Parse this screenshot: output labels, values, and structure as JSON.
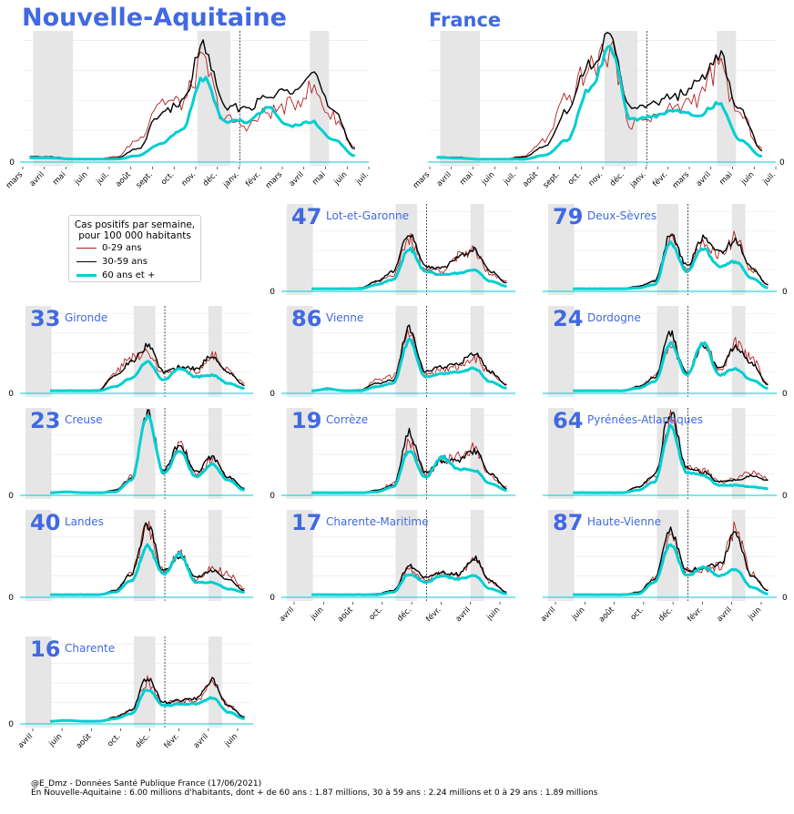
{
  "footer": {
    "line1": "@E_Dmz - Données Santé Publique France (17/06/2021)",
    "line2": "En Nouvelle-Aquitaine : 6.00 millions d'habitants, dont + de 60 ans : 1.87 millions, 30 à 59 ans : 2.24 millions et 0 à 29 ans : 1.89 millions"
  },
  "legend": {
    "title_line1": "Cas positifs par semaine,",
    "title_line2": "pour 100 000 habitants",
    "entries": [
      "0-29 ans",
      "30-59 ans",
      "60 ans et +"
    ]
  },
  "colors": {
    "young": "#b22222",
    "middle": "#000000",
    "senior": "#00ced1",
    "accent": "#4169e1",
    "shade": "#e6e6e6"
  },
  "chart_data": [
    {
      "type": "line",
      "title": "Nouvelle-Aquitaine",
      "x_tick_labels": [
        "mars",
        "avril",
        "mai",
        "juin",
        "juil.",
        "août",
        "sept.",
        "oct.",
        "nov.",
        "déc.",
        "janv.",
        "févr.",
        "mars",
        "avril",
        "mai",
        "juin",
        "juil."
      ],
      "y_tick_labels": [
        "0"
      ],
      "shaded_periods": [
        [
          "2020-03-17",
          "2020-05-11"
        ],
        [
          "2020-10-30",
          "2020-12-15"
        ],
        [
          "2021-04-03",
          "2021-05-03"
        ]
      ],
      "vertical_marker": "2021-01-01",
      "series": [
        {
          "name": "0-29 ans",
          "x": [
            "2020-03",
            "2020-04",
            "2020-05",
            "2020-06",
            "2020-07",
            "2020-08",
            "2020-09",
            "2020-10",
            "2020-11",
            "2020-12",
            "2021-01",
            "2021-02",
            "2021-03",
            "2021-04",
            "2021-05",
            "2021-06"
          ],
          "values": [
            2,
            2,
            1,
            1,
            3,
            18,
            52,
            50,
            84,
            36,
            30,
            42,
            48,
            62,
            38,
            12
          ]
        },
        {
          "name": "30-59 ans",
          "x": [
            "2020-03",
            "2020-04",
            "2020-05",
            "2020-06",
            "2020-07",
            "2020-08",
            "2020-09",
            "2020-10",
            "2020-11",
            "2020-12",
            "2021-01",
            "2021-02",
            "2021-03",
            "2021-04",
            "2021-05",
            "2021-06"
          ],
          "values": [
            3,
            3,
            1,
            1,
            2,
            10,
            40,
            50,
            100,
            46,
            46,
            55,
            62,
            78,
            42,
            10
          ]
        },
        {
          "name": "60 ans et +",
          "x": [
            "2020-03",
            "2020-04",
            "2020-05",
            "2020-06",
            "2020-07",
            "2020-08",
            "2020-09",
            "2020-10",
            "2020-11",
            "2020-12",
            "2021-01",
            "2021-02",
            "2021-03",
            "2021-04",
            "2021-05",
            "2021-06"
          ],
          "values": [
            2,
            2,
            1,
            1,
            1,
            4,
            14,
            26,
            72,
            34,
            34,
            46,
            30,
            34,
            18,
            4
          ]
        }
      ]
    },
    {
      "type": "line",
      "title": "France",
      "x_tick_labels": [
        "mars",
        "avril",
        "mai",
        "juin",
        "juil.",
        "août",
        "sept.",
        "oct.",
        "nov.",
        "déc.",
        "janv.",
        "févr.",
        "mars",
        "avril",
        "mai",
        "juin",
        "juil."
      ],
      "y_tick_labels": [],
      "shaded_periods": [
        [
          "2020-03-17",
          "2020-05-11"
        ],
        [
          "2020-10-30",
          "2020-12-15"
        ],
        [
          "2021-04-03",
          "2021-05-03"
        ]
      ],
      "vertical_marker": "2021-01-01",
      "series": [
        {
          "name": "0-29 ans",
          "x": [
            "2020-03",
            "2020-04",
            "2020-05",
            "2020-06",
            "2020-07",
            "2020-08",
            "2020-09",
            "2020-10",
            "2020-11",
            "2020-12",
            "2021-01",
            "2021-02",
            "2021-03",
            "2021-04",
            "2021-05",
            "2021-06"
          ],
          "values": [
            2,
            2,
            1,
            1,
            4,
            20,
            60,
            90,
            110,
            36,
            44,
            52,
            62,
            92,
            44,
            12
          ]
        },
        {
          "name": "30-59 ans",
          "x": [
            "2020-03",
            "2020-04",
            "2020-05",
            "2020-06",
            "2020-07",
            "2020-08",
            "2020-09",
            "2020-10",
            "2020-11",
            "2020-12",
            "2021-01",
            "2021-02",
            "2021-03",
            "2021-04",
            "2021-05",
            "2021-06"
          ],
          "values": [
            3,
            3,
            1,
            1,
            3,
            14,
            50,
            95,
            120,
            50,
            56,
            64,
            76,
            105,
            50,
            10
          ]
        },
        {
          "name": "60 ans et +",
          "x": [
            "2020-03",
            "2020-04",
            "2020-05",
            "2020-06",
            "2020-07",
            "2020-08",
            "2020-09",
            "2020-10",
            "2020-11",
            "2020-12",
            "2021-01",
            "2021-02",
            "2021-03",
            "2021-04",
            "2021-05",
            "2021-06"
          ],
          "values": [
            3,
            2,
            1,
            1,
            1,
            5,
            20,
            70,
            110,
            40,
            44,
            50,
            44,
            56,
            20,
            4
          ]
        }
      ]
    },
    {
      "type": "line",
      "code": "47",
      "name": "Lot-et-Garonne",
      "values_young": [
        1,
        1,
        1,
        2,
        10,
        18,
        60,
        24,
        24,
        40,
        48,
        20,
        10
      ],
      "values_middle": [
        1,
        1,
        1,
        2,
        10,
        22,
        70,
        28,
        26,
        40,
        48,
        22,
        8
      ],
      "values_senior": [
        1,
        1,
        1,
        1,
        6,
        12,
        50,
        22,
        18,
        20,
        24,
        10,
        4
      ]
    },
    {
      "type": "line",
      "code": "79",
      "name": "Deux-Sèvres",
      "values_young": [
        1,
        1,
        1,
        1,
        4,
        10,
        60,
        26,
        56,
        42,
        62,
        24,
        6
      ],
      "values_middle": [
        1,
        1,
        1,
        1,
        4,
        10,
        66,
        30,
        62,
        46,
        60,
        26,
        6
      ],
      "values_senior": [
        1,
        1,
        1,
        1,
        2,
        6,
        56,
        22,
        50,
        28,
        34,
        14,
        2
      ]
    },
    {
      "type": "line",
      "code": "33",
      "name": "Gironde",
      "values_young": [
        1,
        1,
        1,
        2,
        24,
        42,
        50,
        22,
        30,
        24,
        44,
        26,
        10
      ],
      "values_middle": [
        1,
        1,
        1,
        2,
        20,
        36,
        56,
        24,
        30,
        28,
        44,
        22,
        8
      ],
      "values_senior": [
        1,
        1,
        1,
        1,
        6,
        16,
        36,
        14,
        28,
        18,
        20,
        10,
        4
      ]
    },
    {
      "type": "line",
      "code": "86",
      "name": "Vienne",
      "values_young": [
        1,
        4,
        1,
        2,
        14,
        18,
        70,
        20,
        28,
        30,
        40,
        22,
        8
      ],
      "values_middle": [
        1,
        4,
        1,
        2,
        10,
        14,
        78,
        24,
        30,
        34,
        48,
        24,
        8
      ],
      "values_senior": [
        1,
        3,
        1,
        1,
        6,
        10,
        62,
        18,
        22,
        24,
        28,
        12,
        4
      ]
    },
    {
      "type": "line",
      "code": "24",
      "name": "Dordogne",
      "values_young": [
        1,
        1,
        1,
        1,
        6,
        18,
        58,
        22,
        60,
        26,
        58,
        40,
        10
      ],
      "values_middle": [
        1,
        1,
        1,
        1,
        6,
        16,
        70,
        22,
        56,
        28,
        54,
        34,
        8
      ],
      "values_senior": [
        1,
        1,
        1,
        1,
        4,
        12,
        58,
        20,
        60,
        20,
        28,
        14,
        4
      ]
    },
    {
      "type": "line",
      "code": "23",
      "name": "Creuse",
      "values_young": [
        1,
        2,
        1,
        1,
        4,
        20,
        95,
        26,
        60,
        24,
        40,
        20,
        4
      ],
      "values_middle": [
        1,
        2,
        1,
        1,
        4,
        18,
        98,
        28,
        60,
        26,
        44,
        20,
        6
      ],
      "values_senior": [
        1,
        2,
        1,
        1,
        2,
        16,
        95,
        24,
        52,
        20,
        36,
        16,
        4
      ]
    },
    {
      "type": "line",
      "code": "19",
      "name": "Corrèze",
      "values_young": [
        1,
        1,
        1,
        1,
        4,
        12,
        60,
        24,
        40,
        44,
        54,
        20,
        8
      ],
      "values_middle": [
        1,
        1,
        1,
        1,
        4,
        10,
        74,
        26,
        40,
        40,
        52,
        24,
        6
      ],
      "values_senior": [
        1,
        1,
        1,
        1,
        2,
        8,
        52,
        20,
        44,
        30,
        28,
        12,
        4
      ]
    },
    {
      "type": "line",
      "code": "64",
      "name": "Pyrénées-Atlantiques",
      "values_young": [
        1,
        1,
        1,
        1,
        8,
        20,
        90,
        30,
        28,
        14,
        18,
        26,
        20
      ],
      "values_middle": [
        1,
        1,
        1,
        1,
        8,
        22,
        100,
        32,
        26,
        14,
        16,
        22,
        16
      ],
      "values_senior": [
        1,
        1,
        1,
        1,
        4,
        14,
        80,
        26,
        22,
        10,
        10,
        8,
        6
      ]
    },
    {
      "type": "line",
      "code": "40",
      "name": "Landes",
      "values_young": [
        1,
        1,
        1,
        1,
        6,
        28,
        80,
        30,
        50,
        20,
        34,
        26,
        8
      ],
      "values_middle": [
        1,
        1,
        1,
        1,
        6,
        26,
        86,
        30,
        48,
        22,
        30,
        20,
        6
      ],
      "values_senior": [
        1,
        1,
        1,
        1,
        4,
        18,
        60,
        26,
        50,
        16,
        16,
        8,
        4
      ]
    },
    {
      "type": "line",
      "code": "17",
      "name": "Charente-Maritime",
      "values_young": [
        1,
        1,
        1,
        1,
        2,
        6,
        34,
        20,
        26,
        24,
        44,
        16,
        4
      ],
      "values_middle": [
        1,
        1,
        1,
        1,
        2,
        6,
        36,
        22,
        28,
        26,
        46,
        18,
        4
      ],
      "values_senior": [
        1,
        1,
        1,
        1,
        1,
        4,
        26,
        16,
        24,
        20,
        24,
        8,
        2
      ]
    },
    {
      "type": "line",
      "code": "87",
      "name": "Haute-Vienne",
      "values_young": [
        1,
        1,
        1,
        1,
        4,
        20,
        70,
        30,
        30,
        36,
        80,
        26,
        6
      ],
      "values_middle": [
        1,
        1,
        1,
        1,
        4,
        20,
        80,
        30,
        34,
        38,
        76,
        24,
        6
      ],
      "values_senior": [
        1,
        1,
        1,
        1,
        2,
        16,
        62,
        24,
        34,
        24,
        32,
        10,
        2
      ]
    },
    {
      "type": "line",
      "code": "16",
      "name": "Charente",
      "values_young": [
        1,
        2,
        1,
        1,
        6,
        14,
        50,
        22,
        26,
        24,
        50,
        20,
        6
      ],
      "values_middle": [
        1,
        2,
        1,
        1,
        6,
        14,
        54,
        24,
        26,
        28,
        52,
        20,
        6
      ],
      "values_senior": [
        1,
        2,
        1,
        1,
        4,
        10,
        40,
        20,
        22,
        22,
        30,
        12,
        4
      ]
    }
  ],
  "small_multiple_ticks": [
    "avril",
    "juin",
    "août",
    "oct.",
    "déc.",
    "févr.",
    "avril",
    "juin"
  ],
  "zero_label": "0"
}
